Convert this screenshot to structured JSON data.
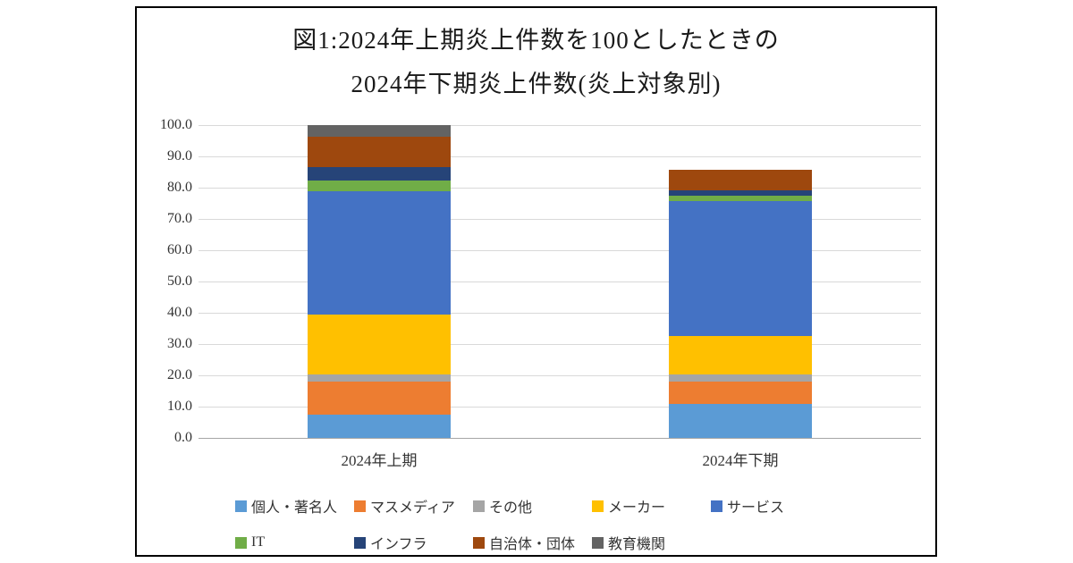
{
  "chart": {
    "title_line1": "図1:2024年上期炎上件数を100としたときの",
    "title_line2": "2024年下期炎上件数(炎上対象別)"
  },
  "chart_data": {
    "type": "bar",
    "stacked": true,
    "title": "図1:2024年上期炎上件数を100としたときの 2024年下期炎上件数(炎上対象別)",
    "categories": [
      "2024年上期",
      "2024年下期"
    ],
    "series": [
      {
        "name": "個人・著名人",
        "color": "#5B9BD5",
        "values": [
          7.4,
          10.9
        ]
      },
      {
        "name": "マスメディア",
        "color": "#ED7D31",
        "values": [
          10.6,
          7.1
        ]
      },
      {
        "name": "その他",
        "color": "#A5A5A5",
        "values": [
          2.3,
          2.3
        ]
      },
      {
        "name": "メーカー",
        "color": "#FFC000",
        "values": [
          19.1,
          12.3
        ]
      },
      {
        "name": "サービス",
        "color": "#4472C4",
        "values": [
          39.5,
          43.1
        ]
      },
      {
        "name": "IT",
        "color": "#70AD47",
        "values": [
          3.4,
          1.7
        ]
      },
      {
        "name": "インフラ",
        "color": "#264478",
        "values": [
          4.3,
          1.7
        ]
      },
      {
        "name": "自治体・団体",
        "color": "#9E480E",
        "values": [
          9.7,
          6.6
        ]
      },
      {
        "name": "教育機関",
        "color": "#636363",
        "values": [
          3.7,
          0.0
        ]
      }
    ],
    "totals": [
      100.0,
      85.7
    ],
    "xlabel": "",
    "ylabel": "",
    "ylim": [
      0,
      100
    ],
    "ytick_step": 10,
    "ytick_labels": [
      "0.0",
      "10.0",
      "20.0",
      "30.0",
      "40.0",
      "50.0",
      "60.0",
      "70.0",
      "80.0",
      "90.0",
      "100.0"
    ],
    "grid": true,
    "legend_position": "bottom"
  }
}
